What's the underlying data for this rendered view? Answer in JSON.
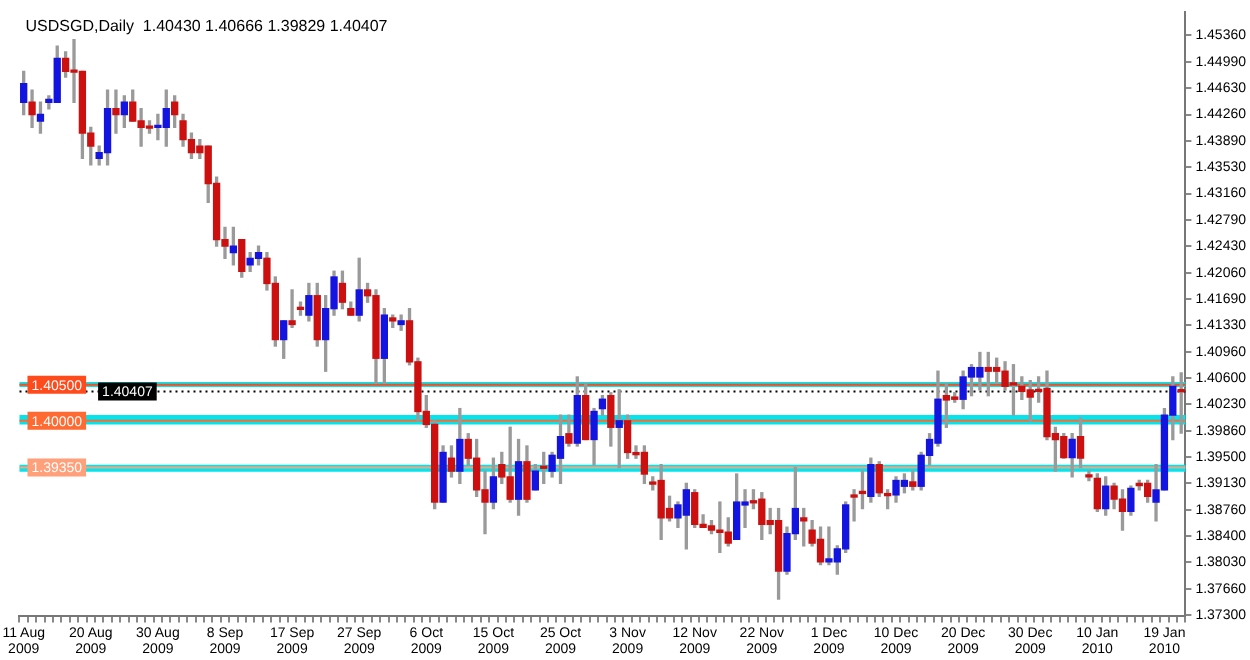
{
  "chart_data": {
    "type": "candlestick",
    "title": "USDSGD,Daily  1.40430 1.40666 1.39829 1.40407",
    "categories": [
      "11 Aug 2009",
      null,
      null,
      null,
      null,
      null,
      null,
      null,
      "20 Aug 2009",
      null,
      null,
      null,
      null,
      null,
      null,
      null,
      "30 Aug 2009",
      null,
      null,
      null,
      null,
      null,
      null,
      null,
      "8 Sep 2009",
      null,
      null,
      null,
      null,
      null,
      null,
      null,
      "17 Sep 2009",
      null,
      null,
      null,
      null,
      null,
      null,
      null,
      "27 Sep 2009",
      null,
      null,
      null,
      null,
      null,
      null,
      null,
      "6 Oct 2009",
      null,
      null,
      null,
      null,
      null,
      null,
      null,
      "15 Oct 2009",
      null,
      null,
      null,
      null,
      null,
      null,
      null,
      "25 Oct 2009",
      null,
      null,
      null,
      null,
      null,
      null,
      null,
      "3 Nov 2009",
      null,
      null,
      null,
      null,
      null,
      null,
      null,
      "12 Nov 2009",
      null,
      null,
      null,
      null,
      null,
      null,
      null,
      "22 Nov 2009",
      null,
      null,
      null,
      null,
      null,
      null,
      null,
      "1 Dec 2009",
      null,
      null,
      null,
      null,
      null,
      null,
      null,
      "10 Dec 2009",
      null,
      null,
      null,
      null,
      null,
      null,
      null,
      "20 Dec 2009",
      null,
      null,
      null,
      null,
      null,
      null,
      null,
      "30 Dec 2009",
      null,
      null,
      null,
      null,
      null,
      null,
      null,
      "10 Jan 2010",
      null,
      null,
      null,
      null,
      null,
      null,
      null,
      "19 Jan 2010",
      null,
      null
    ],
    "ohlc": [
      [
        1.4443,
        1.4486,
        1.4426,
        1.4469
      ],
      [
        1.4443,
        1.446,
        1.4408,
        1.4426
      ],
      [
        1.4417,
        1.4443,
        1.44,
        1.4426
      ],
      [
        1.4443,
        1.4452,
        1.4434,
        1.4447
      ],
      [
        1.4443,
        1.4521,
        1.4443,
        1.4504
      ],
      [
        1.4504,
        1.4513,
        1.4478,
        1.4486
      ],
      [
        1.4486,
        1.453,
        1.4443,
        1.4485
      ],
      [
        1.4486,
        1.4486,
        1.4365,
        1.44
      ],
      [
        1.44,
        1.4408,
        1.4356,
        1.4382
      ],
      [
        1.4365,
        1.4382,
        1.4356,
        1.4373
      ],
      [
        1.4373,
        1.446,
        1.4356,
        1.4434
      ],
      [
        1.4434,
        1.446,
        1.44,
        1.4426
      ],
      [
        1.4426,
        1.4452,
        1.4408,
        1.4443
      ],
      [
        1.4443,
        1.446,
        1.4417,
        1.4417
      ],
      [
        1.4417,
        1.4434,
        1.4382,
        1.4408
      ],
      [
        1.4408,
        1.4417,
        1.44,
        1.4407
      ],
      [
        1.4408,
        1.4426,
        1.4391,
        1.4409
      ],
      [
        1.4408,
        1.446,
        1.4382,
        1.4434
      ],
      [
        1.4443,
        1.4452,
        1.4408,
        1.4426
      ],
      [
        1.4417,
        1.4426,
        1.4382,
        1.4391
      ],
      [
        1.4391,
        1.44,
        1.4365,
        1.4373
      ],
      [
        1.4382,
        1.4391,
        1.4365,
        1.4373
      ],
      [
        1.4382,
        1.4382,
        1.4304,
        1.433
      ],
      [
        1.433,
        1.4339,
        1.4243,
        1.4252
      ],
      [
        1.4252,
        1.4269,
        1.4226,
        1.4243
      ],
      [
        1.4234,
        1.4269,
        1.4217,
        1.4243
      ],
      [
        1.4252,
        1.4252,
        1.42,
        1.4208
      ],
      [
        1.4217,
        1.4234,
        1.4208,
        1.4226
      ],
      [
        1.4226,
        1.4243,
        1.4217,
        1.4234
      ],
      [
        1.4226,
        1.4234,
        1.4182,
        1.4191
      ],
      [
        1.4191,
        1.42,
        1.4104,
        1.4113
      ],
      [
        1.4113,
        1.4139,
        1.4087,
        1.4139
      ],
      [
        1.4139,
        1.4182,
        1.413,
        1.4134
      ],
      [
        1.4156,
        1.4165,
        1.4147,
        1.4155
      ],
      [
        1.4147,
        1.4191,
        1.4139,
        1.4174
      ],
      [
        1.4174,
        1.4191,
        1.4104,
        1.4113
      ],
      [
        1.4113,
        1.4174,
        1.4069,
        1.4156
      ],
      [
        1.4156,
        1.4208,
        1.4147,
        1.42
      ],
      [
        1.4191,
        1.4208,
        1.4156,
        1.4165
      ],
      [
        1.4156,
        1.4165,
        1.4147,
        1.4147
      ],
      [
        1.4147,
        1.4226,
        1.4139,
        1.4182
      ],
      [
        1.4182,
        1.4191,
        1.4165,
        1.4174
      ],
      [
        1.4174,
        1.4182,
        1.4052,
        1.4087
      ],
      [
        1.4087,
        1.4156,
        1.4052,
        1.4147
      ],
      [
        1.4143,
        1.4147,
        1.413,
        1.4139
      ],
      [
        1.4134,
        1.4147,
        1.4126,
        1.4139
      ],
      [
        1.4139,
        1.4156,
        1.4078,
        1.4082
      ],
      [
        1.4082,
        1.4087,
        1.4,
        1.4013
      ],
      [
        1.4013,
        1.4035,
        1.3991,
        1.3995
      ],
      [
        1.3995,
        1.4,
        1.3878,
        1.3887
      ],
      [
        1.3887,
        1.3965,
        1.3887,
        1.3956
      ],
      [
        1.3948,
        1.3965,
        1.3922,
        1.393
      ],
      [
        1.393,
        1.4017,
        1.3913,
        1.3974
      ],
      [
        1.3974,
        1.3982,
        1.3939,
        1.3948
      ],
      [
        1.3948,
        1.3974,
        1.3895,
        1.3904
      ],
      [
        1.3904,
        1.393,
        1.3843,
        1.3887
      ],
      [
        1.3887,
        1.3948,
        1.3878,
        1.3922
      ],
      [
        1.3939,
        1.3956,
        1.3913,
        1.3922
      ],
      [
        1.3922,
        1.3991,
        1.3887,
        1.3891
      ],
      [
        1.3891,
        1.3974,
        1.3869,
        1.3943
      ],
      [
        1.3943,
        1.3965,
        1.3887,
        1.3891
      ],
      [
        1.3904,
        1.3939,
        1.3904,
        1.393
      ],
      [
        1.3935,
        1.3956,
        1.3913,
        1.3934
      ],
      [
        1.393,
        1.3956,
        1.3922,
        1.3952
      ],
      [
        1.3948,
        1.4008,
        1.3913,
        1.3978
      ],
      [
        1.3982,
        1.4008,
        1.3965,
        1.3969
      ],
      [
        1.3969,
        1.4061,
        1.3965,
        1.4035
      ],
      [
        1.4035,
        1.4052,
        1.3974,
        1.3974
      ],
      [
        1.3974,
        1.4017,
        1.3939,
        1.4013
      ],
      [
        1.4017,
        1.4035,
        1.4008,
        1.403
      ],
      [
        1.4035,
        1.4039,
        1.3965,
        1.3991
      ],
      [
        1.3991,
        1.4043,
        1.3935,
        1.4
      ],
      [
        1.4,
        1.4008,
        1.3948,
        1.3956
      ],
      [
        1.3954,
        1.3965,
        1.3948,
        1.3953
      ],
      [
        1.3956,
        1.3965,
        1.3913,
        1.3926
      ],
      [
        1.3913,
        1.3922,
        1.3904,
        1.3912
      ],
      [
        1.3917,
        1.3939,
        1.3835,
        1.3865
      ],
      [
        1.3878,
        1.3895,
        1.3861,
        1.3865
      ],
      [
        1.3865,
        1.3887,
        1.3852,
        1.3883
      ],
      [
        1.3869,
        1.3913,
        1.3822,
        1.3904
      ],
      [
        1.39,
        1.3904,
        1.3852,
        1.3856
      ],
      [
        1.3856,
        1.3869,
        1.3852,
        1.3852
      ],
      [
        1.3854,
        1.3861,
        1.3843,
        1.3848
      ],
      [
        1.3848,
        1.3887,
        1.3817,
        1.3845
      ],
      [
        1.3845,
        1.3865,
        1.3826,
        1.383
      ],
      [
        1.3835,
        1.3926,
        1.3835,
        1.3887
      ],
      [
        1.3883,
        1.3904,
        1.3852,
        1.3887
      ],
      [
        1.3887,
        1.3904,
        1.3878,
        1.3886
      ],
      [
        1.3891,
        1.39,
        1.3835,
        1.3856
      ],
      [
        1.3861,
        1.3878,
        1.3843,
        1.3856
      ],
      [
        1.3861,
        1.3878,
        1.3752,
        1.3791
      ],
      [
        1.3791,
        1.3852,
        1.3787,
        1.3843
      ],
      [
        1.3843,
        1.3935,
        1.3835,
        1.3878
      ],
      [
        1.3865,
        1.3878,
        1.3826,
        1.3861
      ],
      [
        1.3848,
        1.3861,
        1.3826,
        1.383
      ],
      [
        1.3835,
        1.3852,
        1.38,
        1.3804
      ],
      [
        1.3804,
        1.3852,
        1.38,
        1.3808
      ],
      [
        1.3804,
        1.3826,
        1.3787,
        1.3822
      ],
      [
        1.3822,
        1.3887,
        1.3817,
        1.3883
      ],
      [
        1.3895,
        1.3904,
        1.3861,
        1.3894
      ],
      [
        1.39,
        1.393,
        1.3878,
        1.3899
      ],
      [
        1.3895,
        1.3948,
        1.3887,
        1.3939
      ],
      [
        1.3939,
        1.3943,
        1.3895,
        1.39
      ],
      [
        1.3897,
        1.3904,
        1.3878,
        1.3896
      ],
      [
        1.3897,
        1.3922,
        1.3887,
        1.3917
      ],
      [
        1.3909,
        1.3926,
        1.39,
        1.3917
      ],
      [
        1.3915,
        1.393,
        1.3904,
        1.3909
      ],
      [
        1.3909,
        1.3956,
        1.3904,
        1.3952
      ],
      [
        1.3952,
        1.3982,
        1.3939,
        1.3974
      ],
      [
        1.3969,
        1.4069,
        1.3965,
        1.403
      ],
      [
        1.4035,
        1.4052,
        1.3991,
        1.4029
      ],
      [
        1.4033,
        1.4039,
        1.4026,
        1.403
      ],
      [
        1.403,
        1.4069,
        1.4017,
        1.4061
      ],
      [
        1.4061,
        1.4078,
        1.4035,
        1.4074
      ],
      [
        1.4061,
        1.4095,
        1.4043,
        1.4074
      ],
      [
        1.4074,
        1.4095,
        1.4035,
        1.4069
      ],
      [
        1.4074,
        1.4087,
        1.4052,
        1.4069
      ],
      [
        1.4069,
        1.4082,
        1.4043,
        1.4048
      ],
      [
        1.4052,
        1.4078,
        1.4008,
        1.405
      ],
      [
        1.4048,
        1.4061,
        1.403,
        1.4041
      ],
      [
        1.4043,
        1.4056,
        1.4,
        1.4033
      ],
      [
        1.4042,
        1.4061,
        1.4026,
        1.4041
      ],
      [
        1.4045,
        1.4069,
        1.3974,
        1.3978
      ],
      [
        1.3982,
        1.3991,
        1.393,
        1.3974
      ],
      [
        1.3978,
        1.3982,
        1.3948,
        1.3949
      ],
      [
        1.3949,
        1.3982,
        1.3922,
        1.3974
      ],
      [
        1.3978,
        1.4004,
        1.3935,
        1.3948
      ],
      [
        1.3923,
        1.393,
        1.3917,
        1.3922
      ],
      [
        1.392,
        1.3926,
        1.3874,
        1.3878
      ],
      [
        1.3878,
        1.3922,
        1.3869,
        1.3909
      ],
      [
        1.3909,
        1.3913,
        1.3878,
        1.3891
      ],
      [
        1.3891,
        1.3904,
        1.3848,
        1.3874
      ],
      [
        1.3874,
        1.3909,
        1.3869,
        1.3906
      ],
      [
        1.3911,
        1.3917,
        1.3904,
        1.391
      ],
      [
        1.3913,
        1.3917,
        1.3887,
        1.3895
      ],
      [
        1.3887,
        1.3939,
        1.3861,
        1.3904
      ],
      [
        1.3904,
        1.4017,
        1.3904,
        1.4008
      ],
      [
        1.4008,
        1.4061,
        1.3974,
        1.4048
      ],
      [
        1.4043,
        1.40666,
        1.39829,
        1.40407
      ]
    ],
    "ylim": [
      1.3728,
      1.4568
    ],
    "yticks": [
      {
        "value": 1.4536,
        "label": "1.45360"
      },
      {
        "value": 1.4499,
        "label": "1.44990"
      },
      {
        "value": 1.4463,
        "label": "1.44630"
      },
      {
        "value": 1.4426,
        "label": "1.44260"
      },
      {
        "value": 1.4389,
        "label": "1.43890"
      },
      {
        "value": 1.4353,
        "label": "1.43530"
      },
      {
        "value": 1.4316,
        "label": "1.43160"
      },
      {
        "value": 1.4279,
        "label": "1.42790"
      },
      {
        "value": 1.4243,
        "label": "1.42430"
      },
      {
        "value": 1.4206,
        "label": "1.42060"
      },
      {
        "value": 1.4169,
        "label": "1.41690"
      },
      {
        "value": 1.4133,
        "label": "1.41330"
      },
      {
        "value": 1.4096,
        "label": "1.40960"
      },
      {
        "value": 1.406,
        "label": "1.40600"
      },
      {
        "value": 1.4023,
        "label": "1.40230"
      },
      {
        "value": 1.3986,
        "label": "1.39860"
      },
      {
        "value": 1.395,
        "label": "1.39500"
      },
      {
        "value": 1.3913,
        "label": "1.39130"
      },
      {
        "value": 1.3876,
        "label": "1.38760"
      },
      {
        "value": 1.384,
        "label": "1.38400"
      },
      {
        "value": 1.3803,
        "label": "1.38030"
      },
      {
        "value": 1.3766,
        "label": "1.37660"
      },
      {
        "value": 1.373,
        "label": "1.37300"
      }
    ],
    "ref_lines": [
      {
        "axis": "y",
        "value": 1.405,
        "label": "1.40500",
        "color": "#ff4a1c"
      },
      {
        "axis": "y",
        "value": 1.4,
        "label": "1.40000",
        "color": "#ff6a33"
      },
      {
        "axis": "y",
        "value": 1.3935,
        "label": "1.39350",
        "color": "#ffa07a"
      },
      {
        "axis": "y",
        "value": 1.40407,
        "label": "1.40407",
        "color": "#000000",
        "line_style": "dotted"
      }
    ],
    "bands": [
      {
        "axis": "y",
        "from": 1.4047,
        "to": 1.4054,
        "color": "#00e5ee"
      },
      {
        "axis": "y",
        "from": 1.3995,
        "to": 1.4008,
        "color": "#00e5ee"
      },
      {
        "axis": "y",
        "from": 1.3929,
        "to": 1.3939,
        "color": "#00e5ee"
      }
    ]
  }
}
